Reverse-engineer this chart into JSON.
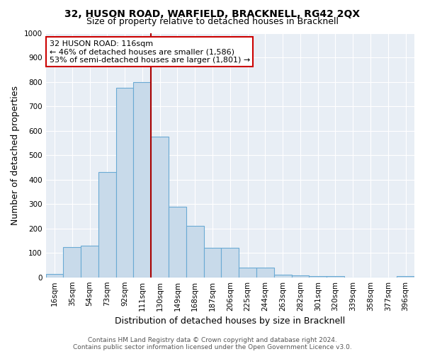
{
  "title": "32, HUSON ROAD, WARFIELD, BRACKNELL, RG42 2QX",
  "subtitle": "Size of property relative to detached houses in Bracknell",
  "xlabel": "Distribution of detached houses by size in Bracknell",
  "ylabel": "Number of detached properties",
  "bar_color": "#c8daea",
  "bar_edge_color": "#6aaad4",
  "categories": [
    "16sqm",
    "35sqm",
    "54sqm",
    "73sqm",
    "92sqm",
    "111sqm",
    "130sqm",
    "149sqm",
    "168sqm",
    "187sqm",
    "206sqm",
    "225sqm",
    "244sqm",
    "263sqm",
    "282sqm",
    "301sqm",
    "320sqm",
    "339sqm",
    "358sqm",
    "377sqm",
    "396sqm"
  ],
  "values": [
    15,
    125,
    130,
    430,
    775,
    800,
    575,
    290,
    210,
    120,
    120,
    40,
    40,
    10,
    8,
    5,
    5,
    0,
    0,
    0,
    5
  ],
  "ylim": [
    0,
    1000
  ],
  "yticks": [
    0,
    100,
    200,
    300,
    400,
    500,
    600,
    700,
    800,
    900,
    1000
  ],
  "property_line_x": 5.5,
  "property_line_color": "#aa0000",
  "annotation_text": "32 HUSON ROAD: 116sqm\n← 46% of detached houses are smaller (1,586)\n53% of semi-detached houses are larger (1,801) →",
  "annotation_box_facecolor": "#ffffff",
  "annotation_box_edgecolor": "#cc0000",
  "footer_line1": "Contains HM Land Registry data © Crown copyright and database right 2024.",
  "footer_line2": "Contains public sector information licensed under the Open Government Licence v3.0.",
  "plot_bg_color": "#e8eef5",
  "grid_color": "#ffffff",
  "fig_bg_color": "#ffffff",
  "title_fontsize": 10,
  "subtitle_fontsize": 9,
  "ylabel_fontsize": 9,
  "xlabel_fontsize": 9,
  "tick_fontsize": 7.5,
  "footer_fontsize": 6.5,
  "annot_fontsize": 8
}
